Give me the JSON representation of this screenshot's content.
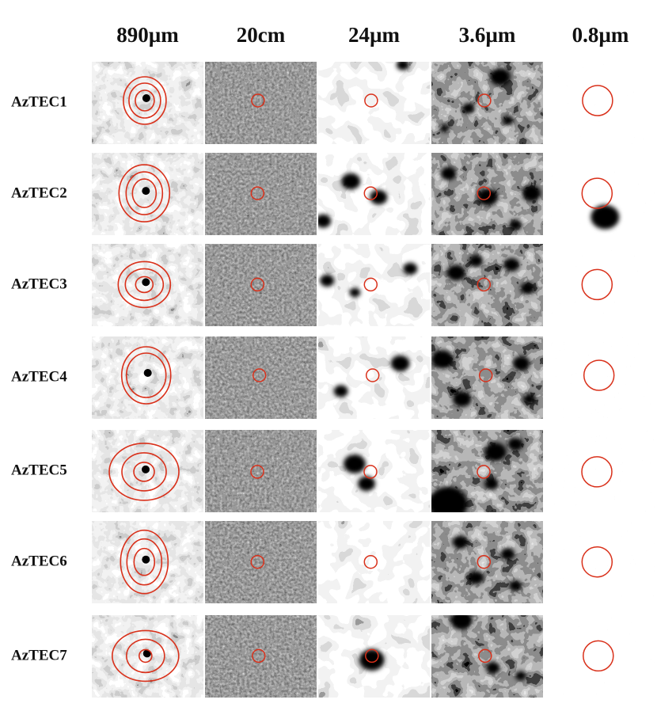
{
  "headers": [
    "890µm",
    "20cm",
    "24µm",
    "3.6µm",
    "0.8µm"
  ],
  "rows": [
    "AzTEC1",
    "AzTEC2",
    "AzTEC3",
    "AzTEC4",
    "AzTEC5",
    "AzTEC6",
    "AzTEC7"
  ]
}
